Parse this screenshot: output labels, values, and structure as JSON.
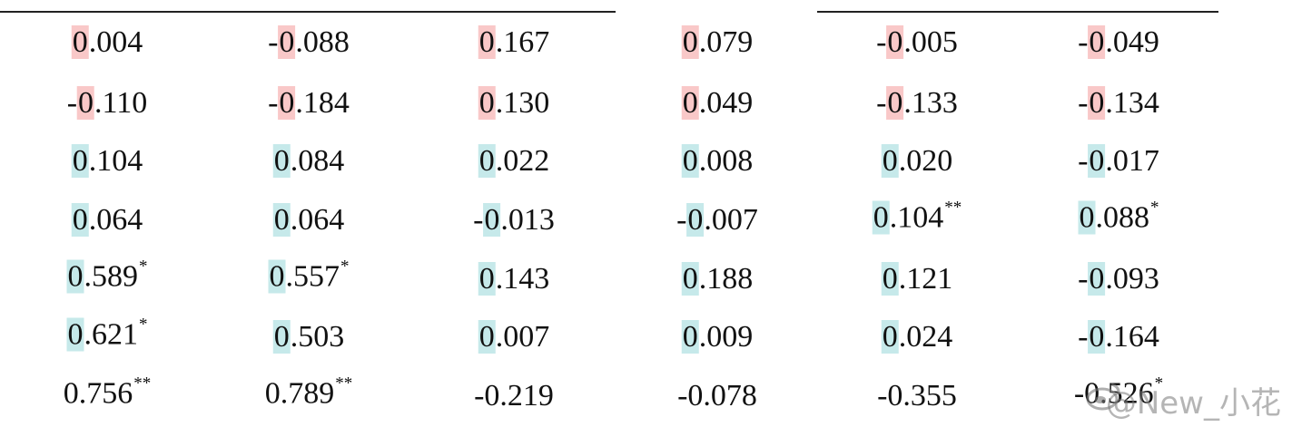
{
  "table": {
    "rows": [
      [
        {
          "text": "0.004",
          "highlight": "#f9c8c8"
        },
        {
          "text": "-0.088",
          "highlight": "#f9c8c8"
        },
        {
          "text": "0.167",
          "highlight": "#f9c8c8"
        },
        {
          "text": "0.079",
          "highlight": "#f9c8c8"
        },
        {
          "text": "-0.005",
          "highlight": "#f9c8c8"
        },
        {
          "text": "-0.049",
          "highlight": "#f9c8c8"
        }
      ],
      [
        {
          "text": "-0.110",
          "highlight": "#f9c8c8"
        },
        {
          "text": "-0.184",
          "highlight": "#f9c8c8"
        },
        {
          "text": "0.130",
          "highlight": "#f9c8c8"
        },
        {
          "text": "0.049",
          "highlight": "#f9c8c8"
        },
        {
          "text": "-0.133",
          "highlight": "#f9c8c8"
        },
        {
          "text": "-0.134",
          "highlight": "#f9c8c8"
        }
      ],
      [
        {
          "text": "0.104",
          "highlight": "#c6e9ea"
        },
        {
          "text": "0.084",
          "highlight": "#c6e9ea"
        },
        {
          "text": "0.022",
          "highlight": "#c6e9ea"
        },
        {
          "text": "0.008",
          "highlight": "#c6e9ea"
        },
        {
          "text": "0.020",
          "highlight": "#c6e9ea"
        },
        {
          "text": "-0.017",
          "highlight": "#c6e9ea"
        }
      ],
      [
        {
          "text": "0.064",
          "highlight": "#c6e9ea"
        },
        {
          "text": "0.064",
          "highlight": "#c6e9ea"
        },
        {
          "text": "-0.013",
          "highlight": "#c6e9ea"
        },
        {
          "text": "-0.007",
          "highlight": "#c6e9ea"
        },
        {
          "text": "0.104",
          "sig": "**",
          "highlight": "#c6e9ea"
        },
        {
          "text": "0.088",
          "sig": "*",
          "highlight": "#c6e9ea"
        }
      ],
      [
        {
          "text": "0.589",
          "sig": "*",
          "highlight": "#c6e9ea"
        },
        {
          "text": "0.557",
          "sig": "*",
          "highlight": "#c6e9ea"
        },
        {
          "text": "0.143",
          "highlight": "#c6e9ea"
        },
        {
          "text": "0.188",
          "highlight": "#c6e9ea"
        },
        {
          "text": "0.121",
          "highlight": "#c6e9ea"
        },
        {
          "text": "-0.093",
          "highlight": "#c6e9ea"
        }
      ],
      [
        {
          "text": "0.621",
          "sig": "*",
          "highlight": "#c6e9ea"
        },
        {
          "text": "0.503",
          "highlight": "#c6e9ea"
        },
        {
          "text": "0.007",
          "highlight": "#c6e9ea"
        },
        {
          "text": "0.009",
          "highlight": "#c6e9ea"
        },
        {
          "text": "0.024",
          "highlight": "#c6e9ea"
        },
        {
          "text": "-0.164",
          "highlight": "#c6e9ea"
        }
      ],
      [
        {
          "text": "0.756",
          "sig": "**"
        },
        {
          "text": "0.789",
          "sig": "**"
        },
        {
          "text": "-0.219"
        },
        {
          "text": "-0.078"
        },
        {
          "text": "-0.355"
        },
        {
          "text": "-0.526",
          "sig": "*"
        }
      ]
    ]
  },
  "watermark": "@New_小花"
}
